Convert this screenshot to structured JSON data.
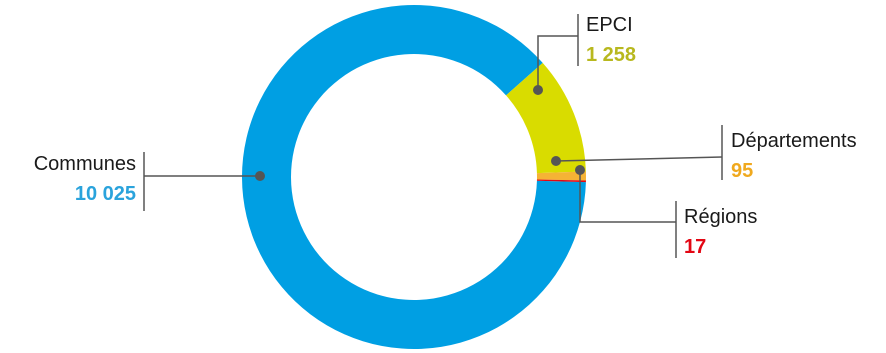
{
  "chart_data": {
    "type": "pie",
    "title": "",
    "slices": [
      {
        "label": "Communes",
        "value": 10025,
        "value_label": "10 025",
        "color": "#009fe3",
        "label_color": "#2aa3dc"
      },
      {
        "label": "EPCI",
        "value": 1258,
        "value_label": "1 258",
        "color": "#d9dc00",
        "label_color": "#b8b81e"
      },
      {
        "label": "Départements",
        "value": 95,
        "value_label": "95",
        "color": "#f5b335",
        "label_color": "#f0a91e"
      },
      {
        "label": "Régions",
        "value": 17,
        "value_label": "17",
        "color": "#e30613",
        "label_color": "#e30613"
      }
    ],
    "legend": "callouts"
  }
}
